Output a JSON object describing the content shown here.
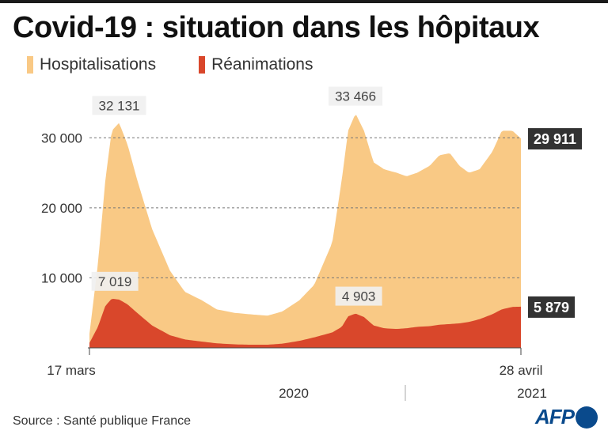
{
  "title": "Covid-19 : situation dans les hôpitaux",
  "source": "Source : Santé publique France",
  "logo": "AFP",
  "colors": {
    "hospitalisations": "#f9c985",
    "reanimations": "#d9472b",
    "value_box": "#333333",
    "peak_box": "#f0f0f0"
  },
  "chart_data": {
    "type": "area",
    "title": "Covid-19 : situation dans les hôpitaux",
    "x_start_label": "17 mars",
    "x_end_label": "28 avril",
    "year_labels": [
      "2020",
      "2021"
    ],
    "y_ticks": [
      10000,
      20000,
      30000
    ],
    "y_tick_labels": [
      "10 000",
      "20 000",
      "30 000"
    ],
    "ylim": [
      0,
      35000
    ],
    "grid": "dashed horizontal",
    "legend_position": "top-left",
    "x": [
      "2020-03-17",
      "2020-03-25",
      "2020-04-01",
      "2020-04-07",
      "2020-04-14",
      "2020-04-22",
      "2020-05-01",
      "2020-05-15",
      "2020-06-01",
      "2020-06-15",
      "2020-07-01",
      "2020-07-15",
      "2020-08-01",
      "2020-08-15",
      "2020-09-01",
      "2020-09-15",
      "2020-10-01",
      "2020-10-15",
      "2020-11-01",
      "2020-11-10",
      "2020-11-16",
      "2020-11-23",
      "2020-12-01",
      "2020-12-10",
      "2020-12-20",
      "2021-01-01",
      "2021-01-10",
      "2021-01-20",
      "2021-02-01",
      "2021-02-10",
      "2021-02-20",
      "2021-03-01",
      "2021-03-10",
      "2021-03-20",
      "2021-04-01",
      "2021-04-10",
      "2021-04-20",
      "2021-04-28"
    ],
    "series": [
      {
        "name": "Hospitalisations",
        "values": [
          2000,
          12000,
          24000,
          31000,
          32131,
          29000,
          24000,
          17000,
          11000,
          8000,
          6800,
          5500,
          5000,
          4800,
          4600,
          5200,
          6800,
          9000,
          15000,
          24000,
          31000,
          33466,
          31000,
          26500,
          25500,
          25000,
          24500,
          25000,
          26000,
          27500,
          27800,
          26000,
          25000,
          25500,
          28000,
          31000,
          31000,
          29911
        ]
      },
      {
        "name": "Réanimations",
        "values": [
          700,
          3000,
          6000,
          7019,
          6900,
          6200,
          5000,
          3200,
          1800,
          1200,
          900,
          650,
          500,
          450,
          450,
          600,
          1000,
          1500,
          2200,
          3000,
          4500,
          4903,
          4400,
          3200,
          2800,
          2700,
          2800,
          3000,
          3100,
          3300,
          3400,
          3500,
          3700,
          4100,
          4800,
          5500,
          5850,
          5879
        ]
      }
    ],
    "annotations": [
      {
        "series": "Hospitalisations",
        "x": "2020-04-14",
        "label": "32 131"
      },
      {
        "series": "Hospitalisations",
        "x": "2020-11-23",
        "label": "33 466"
      },
      {
        "series": "Réanimations",
        "x": "2020-04-07",
        "label": "7 019"
      },
      {
        "series": "Réanimations",
        "x": "2020-11-23",
        "label": "4 903"
      },
      {
        "series": "Hospitalisations",
        "x": "2021-04-28",
        "label": "29 911",
        "boxed": true
      },
      {
        "series": "Réanimations",
        "x": "2021-04-28",
        "label": "5 879",
        "boxed": true
      }
    ]
  }
}
